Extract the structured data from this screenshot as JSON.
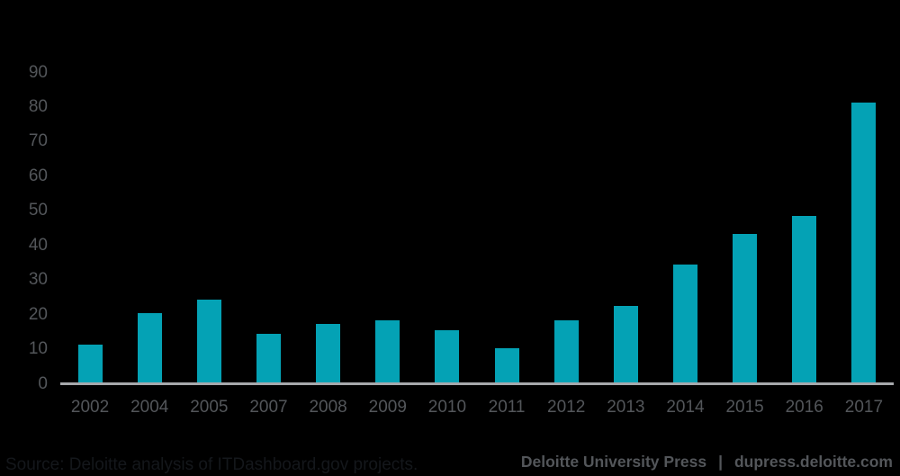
{
  "chart_data": {
    "type": "bar",
    "categories": [
      "2002",
      "2004",
      "2005",
      "2007",
      "2008",
      "2009",
      "2010",
      "2011",
      "2012",
      "2013",
      "2014",
      "2015",
      "2016",
      "2017"
    ],
    "values": [
      11,
      20,
      24,
      14,
      17,
      18,
      15,
      10,
      18,
      22,
      34,
      43,
      48,
      81
    ],
    "title": "",
    "xlabel": "",
    "ylabel": "",
    "ylim": [
      0,
      90
    ],
    "yticks": [
      0,
      10,
      20,
      30,
      40,
      50,
      60,
      70,
      80,
      90
    ],
    "grid": false,
    "legend_position": "none",
    "colors": {
      "bar": "#04A2B5",
      "axis_line": "#A7A9AC",
      "tick_labels": "#53565A",
      "background": "#000000"
    }
  },
  "footer": {
    "source_text": "Source: Deloitte analysis of ITDashboard.gov projects.",
    "source_color": "#14171B",
    "publisher": "Deloitte University Press",
    "separator": "|",
    "website": "dupress.deloitte.com",
    "brand_color": "#53565A"
  }
}
